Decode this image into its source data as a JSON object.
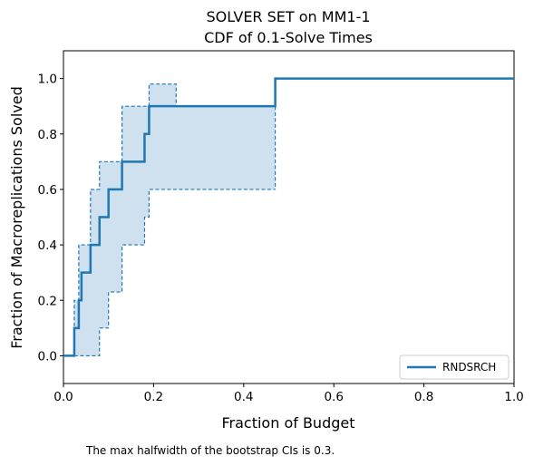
{
  "chart_data": {
    "type": "line",
    "title": [
      "SOLVER SET on MM1-1",
      "CDF of 0.1-Solve Times"
    ],
    "xlabel": "Fraction of Budget",
    "ylabel": "Fraction of Macroreplications Solved",
    "xlim": [
      0,
      1.0
    ],
    "ylim": [
      -0.1,
      1.1
    ],
    "xticks": [
      0.0,
      0.2,
      0.4,
      0.6,
      0.8,
      1.0
    ],
    "xtick_labels": [
      "0.0",
      "0.2",
      "0.4",
      "0.6",
      "0.8",
      "1.0"
    ],
    "yticks": [
      0.0,
      0.2,
      0.4,
      0.6,
      0.8,
      1.0
    ],
    "ytick_labels": [
      "0.0",
      "0.2",
      "0.4",
      "0.6",
      "0.8",
      "1.0"
    ],
    "legend_position": "lower-right",
    "color": "#1f77b4",
    "band_fill": "#cfe0ef",
    "series": [
      {
        "name": "RNDSRCH",
        "style": "solid-step",
        "x": [
          0.0,
          0.024,
          0.034,
          0.04,
          0.06,
          0.08,
          0.1,
          0.13,
          0.18,
          0.19,
          0.47,
          1.0
        ],
        "y": [
          0.0,
          0.1,
          0.2,
          0.3,
          0.4,
          0.5,
          0.6,
          0.7,
          0.8,
          0.9,
          1.0,
          1.0
        ]
      }
    ],
    "confidence_band": {
      "upper": {
        "x": [
          0.024,
          0.034,
          0.06,
          0.08,
          0.13,
          0.19,
          0.25,
          1.0
        ],
        "y": [
          0.2,
          0.4,
          0.6,
          0.7,
          0.9,
          0.98,
          0.9,
          1.0
        ],
        "step_x": [
          0.024,
          0.024,
          0.034,
          0.034,
          0.06,
          0.06,
          0.08,
          0.08,
          0.13,
          0.13,
          0.19,
          0.19,
          0.25,
          0.25,
          0.47,
          0.47
        ],
        "step_y": [
          0.0,
          0.2,
          0.2,
          0.4,
          0.4,
          0.6,
          0.6,
          0.7,
          0.7,
          0.9,
          0.9,
          0.98,
          0.98,
          0.9,
          0.9,
          0.6
        ]
      },
      "lower": {
        "step_x": [
          0.024,
          0.08,
          0.08,
          0.1,
          0.1,
          0.13,
          0.13,
          0.18,
          0.18,
          0.19,
          0.19,
          0.47
        ],
        "step_y": [
          0.0,
          0.0,
          0.1,
          0.1,
          0.23,
          0.23,
          0.4,
          0.4,
          0.5,
          0.5,
          0.6,
          0.6
        ]
      }
    },
    "note": "The max halfwidth of the bootstrap CIs is 0.3."
  }
}
